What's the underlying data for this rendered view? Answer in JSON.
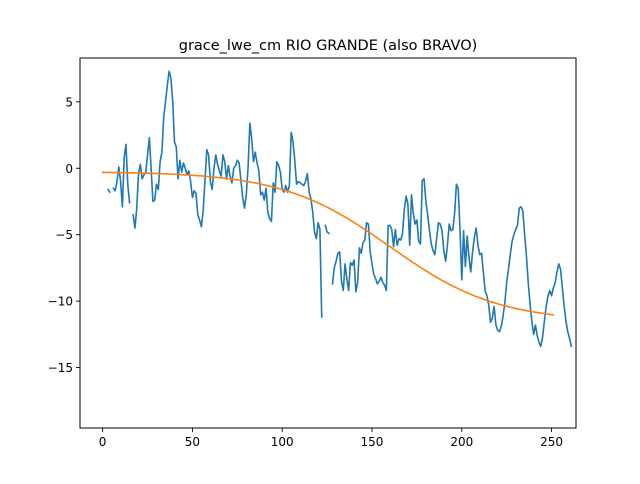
{
  "chart_data": {
    "type": "line",
    "title": "grace_lwe_cm RIO GRANDE (also BRAVO)",
    "xlabel": "",
    "ylabel": "",
    "xlim": [
      -12.6,
      263.6
    ],
    "ylim": [
      -19.55,
      8.3
    ],
    "xticks": [
      0,
      50,
      100,
      150,
      200,
      250
    ],
    "yticks": [
      -15,
      -10,
      -5,
      0,
      5
    ],
    "grid": false,
    "series": [
      {
        "color": "#1f77b4",
        "values": [
          null,
          null,
          null,
          -1.6,
          -1.8,
          null,
          -1.5,
          -1.7,
          -1.0,
          0.1,
          -1.0,
          -2.9,
          0.8,
          1.8,
          -1.2,
          -2.6,
          null,
          -3.5,
          -4.5,
          -3.0,
          -0.4,
          0.3,
          -0.8,
          -0.5,
          -0.3,
          1.0,
          2.3,
          0.0,
          -2.5,
          -2.4,
          -1.2,
          -1.6,
          0.5,
          1.2,
          3.8,
          5.0,
          6.2,
          7.3,
          6.8,
          5.1,
          2.0,
          1.6,
          -0.8,
          0.6,
          -0.3,
          0.4,
          0.0,
          -0.5,
          -0.2,
          -1.0,
          -2.2,
          -1.7,
          -1.9,
          -3.5,
          -3.9,
          -4.4,
          -3.2,
          -0.9,
          1.4,
          1.0,
          -1.0,
          -1.6,
          0.0,
          1.0,
          0.3,
          -0.2,
          -0.6,
          1.0,
          0.5,
          -0.8,
          0.2,
          -0.6,
          -1.1,
          0.0,
          0.2,
          0.6,
          0.4,
          -0.9,
          -2.2,
          -3.0,
          -2.0,
          0.1,
          3.4,
          2.2,
          0.5,
          1.2,
          0.4,
          -0.2,
          -2.0,
          -1.8,
          -2.4,
          -1.5,
          -3.3,
          -3.8,
          -4.0,
          -1.1,
          -1.8,
          0.5,
          0.2,
          -0.3,
          -1.6,
          -1.8,
          -1.3,
          -1.8,
          -1.3,
          2.7,
          2.0,
          0.6,
          -1.2,
          -1.0,
          -1.1,
          -1.2,
          -1.3,
          -1.0,
          -0.4,
          -1.8,
          -2.3,
          -3.3,
          -4.8,
          -5.3,
          -4.1,
          -4.6,
          -11.2,
          null,
          -4.3,
          -4.8,
          -4.9,
          null,
          -8.7,
          -7.5,
          -7.0,
          -6.4,
          -6.3,
          -8.5,
          -9.2,
          -7.2,
          -8.3,
          -9.2,
          -7.1,
          -7.3,
          -6.9,
          -9.3,
          -8.6,
          -6.0,
          -6.4,
          -5.6,
          -5.4,
          -4.1,
          -4.2,
          -6.3,
          -7.2,
          -8.0,
          -8.3,
          -8.7,
          -8.5,
          -8.2,
          -8.6,
          -8.8,
          -9.2,
          -4.3,
          -4.3,
          -4.6,
          -5.9,
          -4.6,
          -5.8,
          -5.3,
          -5.4,
          -4.9,
          -3.1,
          -2.1,
          -2.7,
          -5.8,
          -2.0,
          -3.4,
          -4.2,
          -3.9,
          -5.5,
          -5.7,
          -0.9,
          -0.8,
          -2.5,
          -3.5,
          -4.7,
          -5.7,
          -6.2,
          -6.5,
          -5.3,
          -4.1,
          -4.2,
          -4.7,
          -6.2,
          -7.0,
          -5.8,
          -4.2,
          -4.7,
          -4.6,
          -3.4,
          -1.2,
          -1.5,
          -4.6,
          -8.4,
          -4.7,
          -7.4,
          -5.1,
          -6.7,
          -7.8,
          -6.3,
          -5.2,
          -4.5,
          -5.8,
          -6.5,
          -6.4,
          -7.8,
          -9.2,
          -9.6,
          -10.3,
          -11.6,
          -11.3,
          -10.4,
          -11.8,
          -12.2,
          -12.3,
          -11.9,
          -11.1,
          -10.1,
          -8.6,
          -7.6,
          -6.5,
          -5.5,
          -5.0,
          -4.6,
          -4.3,
          -3.0,
          -2.9,
          -3.2,
          -5.0,
          -6.6,
          -8.6,
          -10.2,
          -11.5,
          -12.5,
          -11.8,
          -12.6,
          -13.1,
          -13.4,
          -12.7,
          -11.5,
          -10.4,
          -9.6,
          -9.2,
          -9.6,
          -9.0,
          -8.6,
          -7.8,
          -7.2,
          -7.6,
          -9.0,
          -10.4,
          -11.5,
          -12.3,
          -12.8,
          -13.4
        ]
      },
      {
        "color": "#ff7f0e",
        "values": []
      }
    ]
  }
}
